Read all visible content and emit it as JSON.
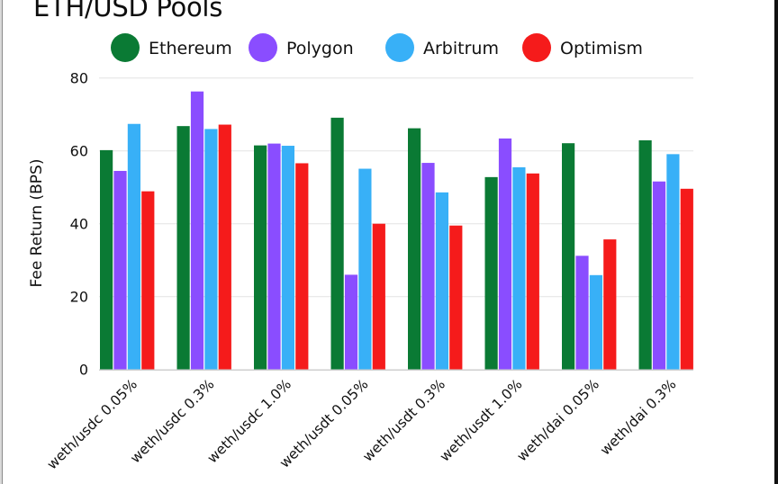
{
  "chart_data": {
    "type": "bar",
    "title": "ETH/USD Pools",
    "xlabel": "",
    "ylabel": "Fee Return (BPS)",
    "ylim": [
      0,
      80
    ],
    "yticks": [
      0,
      20,
      40,
      60,
      80
    ],
    "grid": true,
    "legend_position": "top",
    "categories": [
      "weth/usdc 0.05%",
      "weth/usdc 0.3%",
      "weth/usdc 1.0%",
      "weth/usdt 0.05%",
      "weth/usdt 0.3%",
      "weth/usdt 1.0%",
      "weth/dai 0.05%",
      "weth/dai 0.3%"
    ],
    "series": [
      {
        "name": "Ethereum",
        "color": "#0a7a34",
        "values": [
          60.2,
          66.8,
          61.5,
          69.1,
          66.2,
          52.8,
          62.1,
          62.9
        ]
      },
      {
        "name": "Polygon",
        "color": "#8a4dff",
        "values": [
          54.5,
          76.3,
          62.0,
          26.0,
          56.7,
          63.4,
          31.2,
          51.6
        ]
      },
      {
        "name": "Arbitrum",
        "color": "#38b0f7",
        "values": [
          67.4,
          66.0,
          61.4,
          55.1,
          48.6,
          55.5,
          25.9,
          59.1
        ]
      },
      {
        "name": "Optimism",
        "color": "#f51b1b",
        "values": [
          48.9,
          67.2,
          56.6,
          40.0,
          39.5,
          53.8,
          35.7,
          49.6
        ]
      }
    ]
  }
}
